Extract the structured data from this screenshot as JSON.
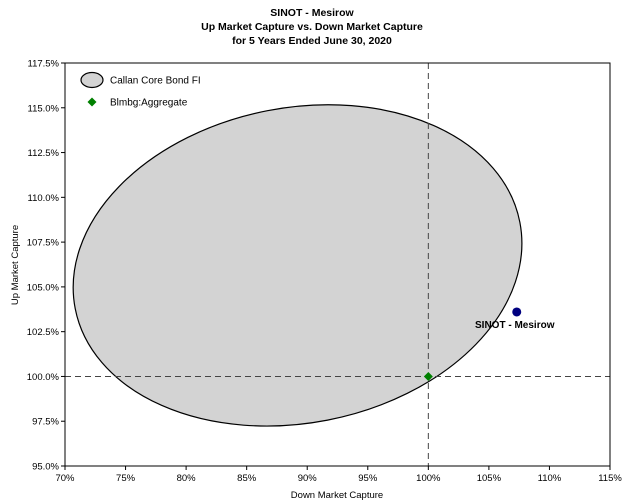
{
  "chart_data": {
    "type": "scatter",
    "title": "SINOT - Mesirow",
    "subtitle": "Up Market Capture vs. Down Market Capture",
    "subtitle2": "for 5 Years Ended June 30, 2020",
    "xlabel": "Down Market Capture",
    "ylabel": "Up Market Capture",
    "xlim": [
      70,
      115
    ],
    "ylim": [
      95,
      117.5
    ],
    "x_ticks": [
      70,
      75,
      80,
      85,
      90,
      95,
      100,
      105,
      110,
      115
    ],
    "x_tick_labels": [
      "70%",
      "75%",
      "80%",
      "85%",
      "90%",
      "95%",
      "100%",
      "105%",
      "110%",
      "115%"
    ],
    "y_ticks": [
      95,
      97.5,
      100,
      102.5,
      105,
      107.5,
      110,
      112.5,
      115,
      117.5
    ],
    "y_tick_labels": [
      "95.0%",
      "97.5%",
      "100.0%",
      "102.5%",
      "105.0%",
      "107.5%",
      "110.0%",
      "112.5%",
      "115.0%",
      "117.5%"
    ],
    "reference_lines": {
      "x": 100,
      "y": 100
    },
    "legend_position": "top-left",
    "grid": false,
    "series": [
      {
        "name": "Callan Core Bond FI",
        "kind": "ellipse",
        "center": [
          89.2,
          106.2
        ],
        "radius_x": 18.7,
        "radius_y": 8.8,
        "rotation_deg": -11,
        "fill": "#d3d3d3",
        "stroke": "#000000"
      },
      {
        "name": "Blmbg:Aggregate",
        "kind": "point",
        "marker": "diamond",
        "x": 100,
        "y": 100,
        "color": "#008000"
      },
      {
        "name": "SINOT - Mesirow",
        "kind": "point",
        "marker": "circle",
        "x": 107.3,
        "y": 103.6,
        "color": "#000080",
        "label": "SINOT - Mesirow"
      }
    ]
  }
}
